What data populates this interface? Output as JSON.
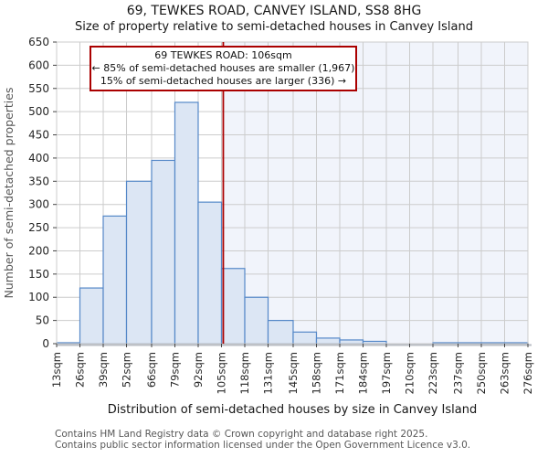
{
  "title": "69, TEWKES ROAD, CANVEY ISLAND, SS8 8HG",
  "subtitle": "Size of property relative to semi-detached houses in Canvey Island",
  "annotation": {
    "line1": "69 TEWKES ROAD: 106sqm",
    "line2": "← 85% of semi-detached houses are smaller (1,967)",
    "line3": "15% of semi-detached houses are larger (336) →"
  },
  "footer": {
    "line1": "Contains HM Land Registry data © Crown copyright and database right 2025.",
    "line2": "Contains public sector information licensed under the Open Government Licence v3.0."
  },
  "chart_data": {
    "type": "bar",
    "title": "69, TEWKES ROAD, CANVEY ISLAND, SS8 8HG",
    "subtitle": "Size of property relative to semi-detached houses in Canvey Island",
    "xlabel": "Distribution of semi-detached houses by size in Canvey Island",
    "ylabel": "Number of semi-detached properties",
    "bin_edges_sqm": [
      13,
      26,
      39,
      52,
      66,
      79,
      92,
      105,
      118,
      131,
      145,
      158,
      171,
      184,
      197,
      210,
      223,
      237,
      250,
      263,
      276
    ],
    "counts": [
      2,
      120,
      275,
      350,
      395,
      520,
      305,
      162,
      100,
      50,
      25,
      12,
      8,
      5,
      0,
      0,
      2,
      2,
      2,
      2
    ],
    "x_tick_labels": [
      "13sqm",
      "26sqm",
      "39sqm",
      "52sqm",
      "66sqm",
      "79sqm",
      "92sqm",
      "105sqm",
      "118sqm",
      "131sqm",
      "145sqm",
      "158sqm",
      "171sqm",
      "184sqm",
      "197sqm",
      "210sqm",
      "223sqm",
      "237sqm",
      "250sqm",
      "263sqm",
      "276sqm"
    ],
    "y_ticks": [
      0,
      50,
      100,
      150,
      200,
      250,
      300,
      350,
      400,
      450,
      500,
      550,
      600,
      650
    ],
    "ylim": [
      0,
      650
    ],
    "marker_value_sqm": 106,
    "marker_label": "69 TEWKES ROAD: 106sqm",
    "smaller_pct": "85%",
    "smaller_count": "1,967",
    "larger_pct": "15%",
    "larger_count": "336",
    "grid": true,
    "legend": false,
    "colors": {
      "bar_fill": "#dce6f4",
      "bar_edge": "#5588c8",
      "grid": "#cccccc",
      "marker_line": "#aa0000",
      "shade_right": "#f1f4fb",
      "annotation_border": "#aa0000",
      "tick_text": "#262626",
      "axis_title": "#575757",
      "spine": "#b9bdc4"
    }
  }
}
